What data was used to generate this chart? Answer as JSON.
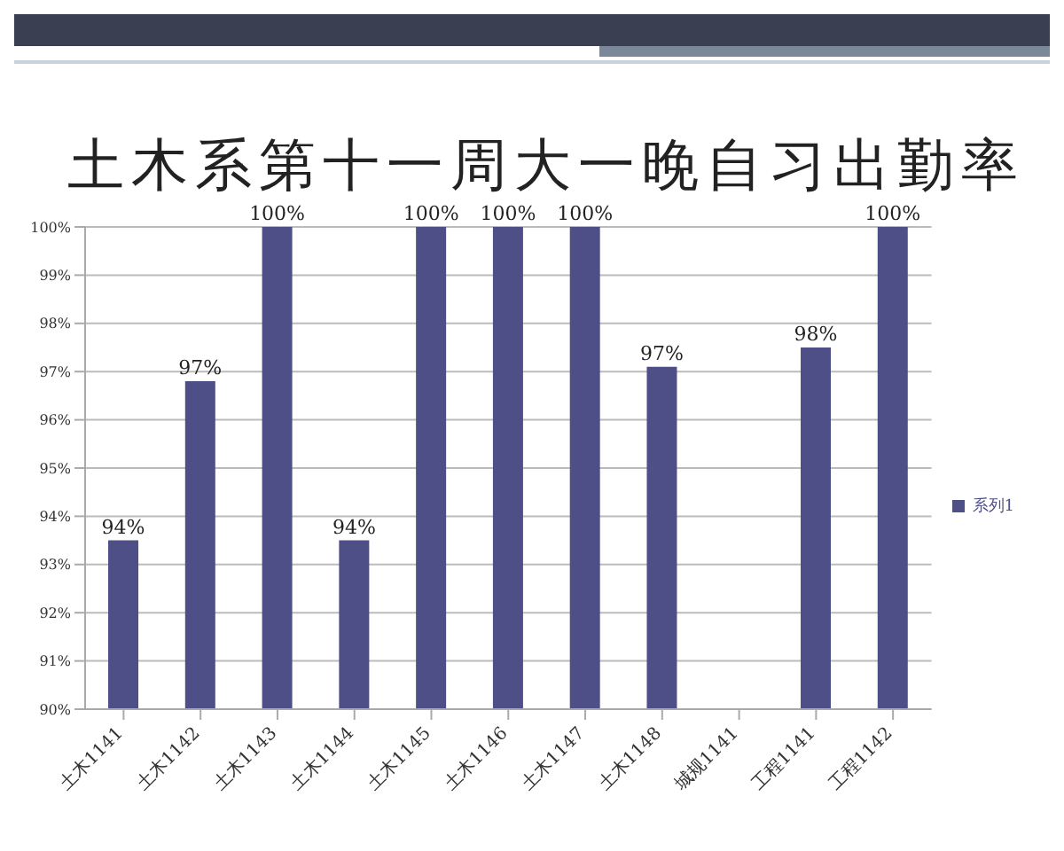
{
  "chart_data": {
    "type": "bar",
    "title": "土木系第十一周大一晚自习出勤率",
    "categories": [
      "土木1141",
      "土木1142",
      "土木1143",
      "土木1144",
      "土木1145",
      "土木1146",
      "土木1147",
      "土木1148",
      "城规1141",
      "工程1141",
      "工程1142"
    ],
    "series": [
      {
        "name": "系列1",
        "color": "#4f4f88",
        "values": [
          93.5,
          96.8,
          100,
          93.5,
          100,
          100,
          100,
          97.1,
          null,
          97.5,
          100
        ],
        "value_labels": [
          "94%",
          "97%",
          "100%",
          "94%",
          "100%",
          "100%",
          "100%",
          "97%",
          null,
          "98%",
          "100%"
        ]
      }
    ],
    "ylim": [
      90,
      100
    ],
    "yticks": [
      {
        "value": 90,
        "label": "90%"
      },
      {
        "value": 91,
        "label": "91%"
      },
      {
        "value": 92,
        "label": "92%"
      },
      {
        "value": 93,
        "label": "93%"
      },
      {
        "value": 94,
        "label": "94%"
      },
      {
        "value": 95,
        "label": "95%"
      },
      {
        "value": 96,
        "label": "96%"
      },
      {
        "value": 97,
        "label": "97%"
      },
      {
        "value": 98,
        "label": "98%"
      },
      {
        "value": 99,
        "label": "99%"
      },
      {
        "value": 100,
        "label": "100%"
      }
    ],
    "grid": "y",
    "legend": "right"
  }
}
